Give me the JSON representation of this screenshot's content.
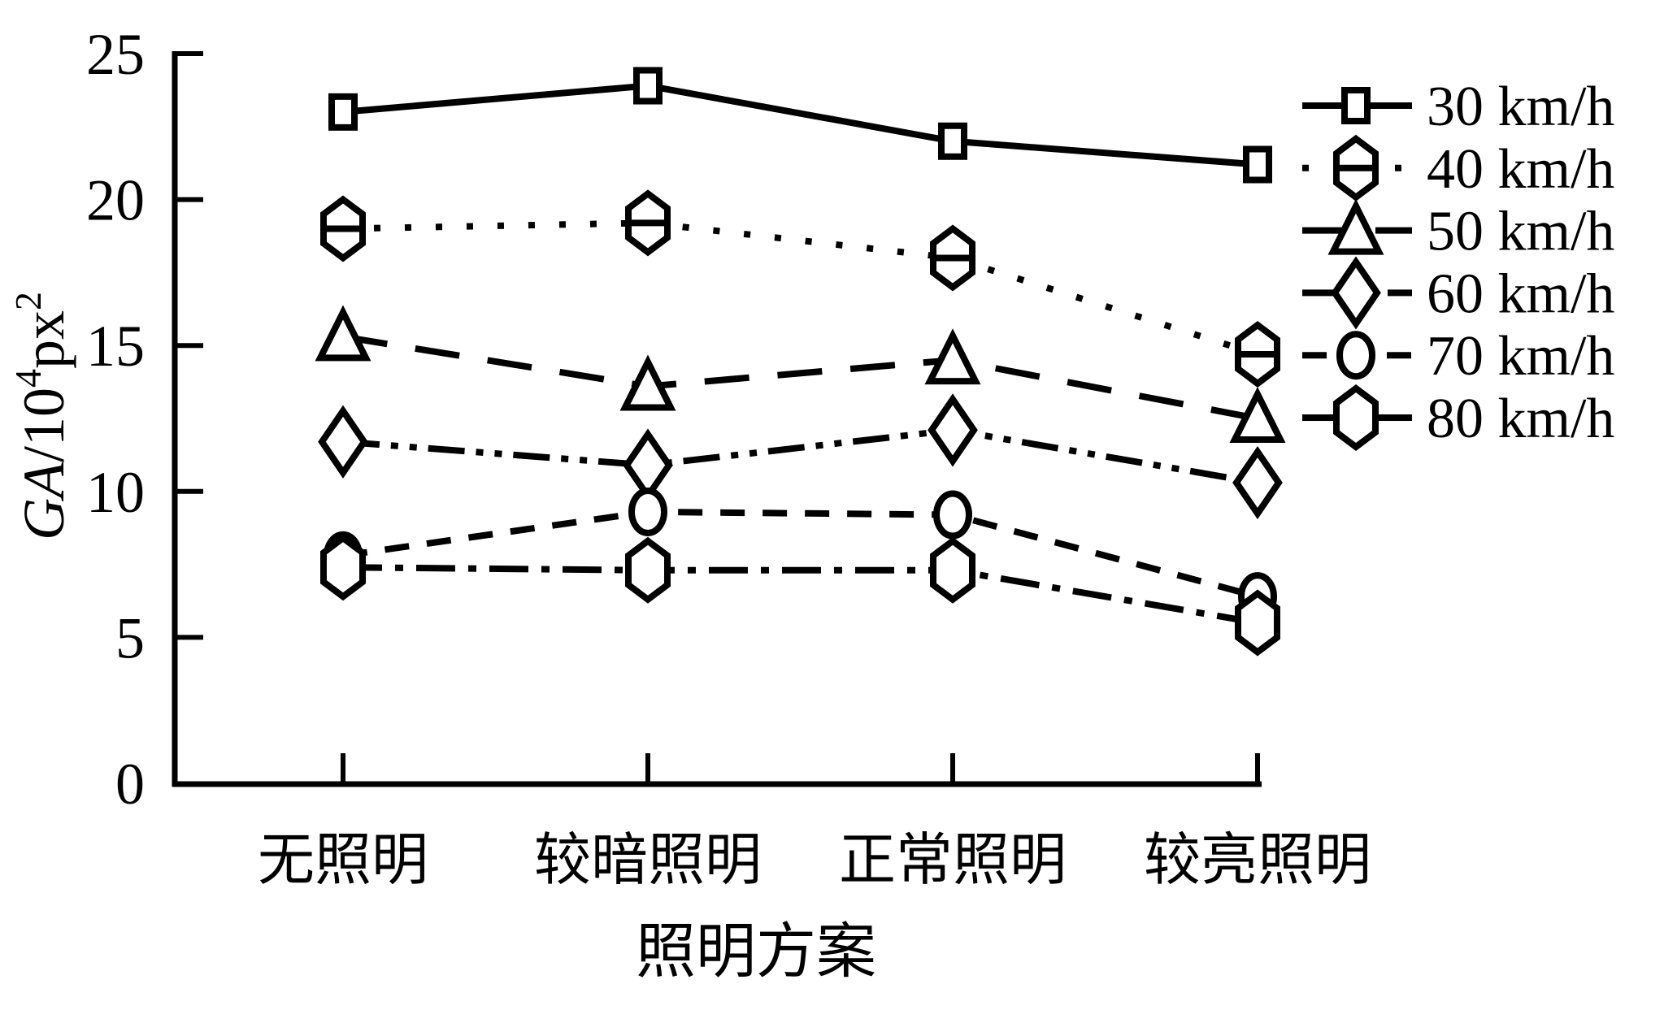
{
  "chart_data": {
    "type": "line",
    "title": "",
    "xlabel": "照明方案",
    "ylabel_plain": "GA/10^4 px^2",
    "ylabel_segments": [
      {
        "t": "GA",
        "italic": true
      },
      {
        "t": "/10"
      },
      {
        "t": "4",
        "sup": true
      },
      {
        "t": "px"
      },
      {
        "t": "2",
        "sup": true
      }
    ],
    "categories": [
      "无照明",
      "较暗照明",
      "正常照明",
      "较亮照明"
    ],
    "y_ticks": [
      0,
      5,
      10,
      15,
      20,
      25
    ],
    "ylim": [
      0,
      25
    ],
    "grid": false,
    "legend_position": "top-right",
    "series": [
      {
        "name": "30 km/h",
        "marker": "square",
        "line": "solid",
        "values": [
          23.0,
          23.9,
          22.0,
          21.2
        ]
      },
      {
        "name": "40 km/h",
        "marker": "hexagon-crossbar",
        "line": "dotted",
        "values": [
          19.0,
          19.2,
          18.0,
          14.7
        ]
      },
      {
        "name": "50 km/h",
        "marker": "triangle",
        "line": "dashed",
        "values": [
          15.3,
          13.6,
          14.5,
          12.5
        ]
      },
      {
        "name": "60 km/h",
        "marker": "diamond",
        "line": "dash-dot-dot",
        "values": [
          11.7,
          10.9,
          12.1,
          10.3
        ]
      },
      {
        "name": "70 km/h",
        "marker": "circle",
        "line": "short-dash",
        "values": [
          7.8,
          9.3,
          9.2,
          6.4
        ]
      },
      {
        "name": "80 km/h",
        "marker": "hexagon",
        "line": "dash-dot",
        "values": [
          7.4,
          7.3,
          7.3,
          5.5
        ]
      }
    ],
    "colors": {
      "foreground": "#000000",
      "background": "#ffffff"
    }
  }
}
